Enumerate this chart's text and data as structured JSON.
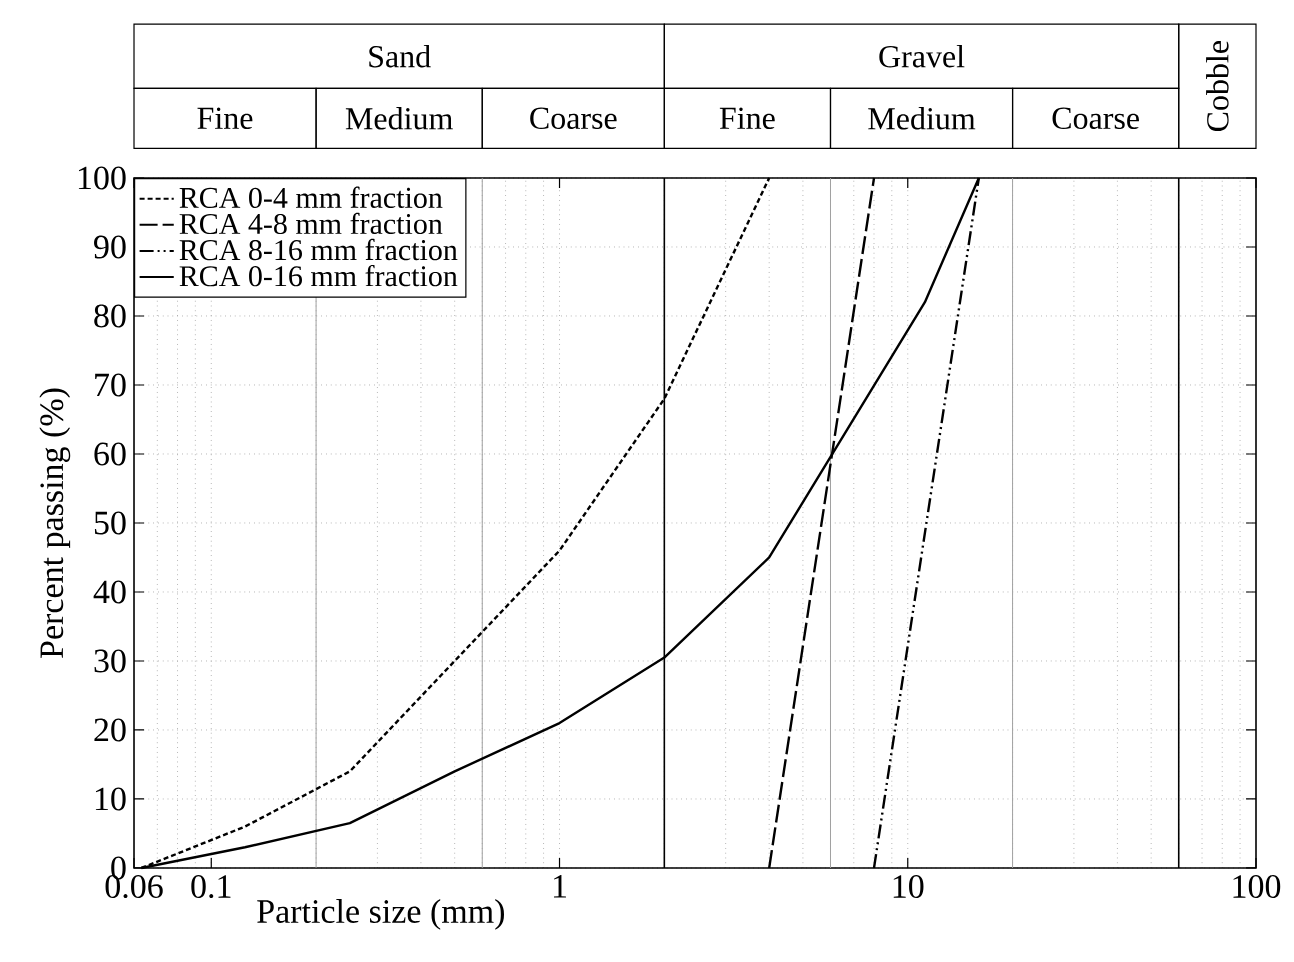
{
  "chart_data": {
    "type": "line",
    "xlabel": "Particle size (mm)",
    "ylabel": "Percent passing (%)",
    "log": "x",
    "xlim": [
      0.06,
      100
    ],
    "ylim": [
      0,
      100
    ],
    "xticks": [
      0.06,
      0.1,
      1,
      10,
      100
    ],
    "yticks": [
      0,
      10,
      20,
      30,
      40,
      50,
      60,
      70,
      80,
      90,
      100
    ],
    "grid": true,
    "legend": "top left",
    "series": [
      {
        "name": "RCA 0-4 mm fraction",
        "color": "#000000",
        "line_style": "dotted",
        "x": [
          0.063,
          0.125,
          0.25,
          0.5,
          1,
          2,
          4
        ],
        "values": [
          0,
          6,
          14,
          30,
          46,
          68,
          100
        ]
      },
      {
        "name": "RCA 4-8 mm fraction",
        "color": "#000000",
        "line_style": "dashed",
        "x": [
          4,
          8
        ],
        "values": [
          0,
          100
        ]
      },
      {
        "name": "RCA 8-16 mm fraction",
        "color": "#000000",
        "line_style": "dashdotted",
        "x": [
          8,
          16
        ],
        "values": [
          0,
          100
        ]
      },
      {
        "name": "RCA 0-16 mm fraction",
        "color": "#000000",
        "line_style": "solid",
        "x": [
          0.063,
          0.125,
          0.25,
          0.5,
          1,
          2,
          4,
          11.2,
          16
        ],
        "values": [
          0,
          3,
          6.5,
          14,
          21,
          30.5,
          45,
          82,
          100
        ]
      }
    ],
    "ref_lines": [
      {
        "axis": "x",
        "value": 0.2,
        "color": "#a0a0a0"
      },
      {
        "axis": "x",
        "value": 0.6,
        "color": "#a0a0a0"
      },
      {
        "axis": "x",
        "value": 2,
        "color": "#000000"
      },
      {
        "axis": "x",
        "value": 6,
        "color": "#a0a0a0"
      },
      {
        "axis": "x",
        "value": 20,
        "color": "#a0a0a0"
      },
      {
        "axis": "x",
        "value": 60,
        "color": "#000000"
      }
    ],
    "annotations": [
      "Sand",
      "Gravel",
      "Cobble",
      "Fine",
      "Medium",
      "Coarse",
      "Fine",
      "Medium",
      "Coarse"
    ]
  }
}
